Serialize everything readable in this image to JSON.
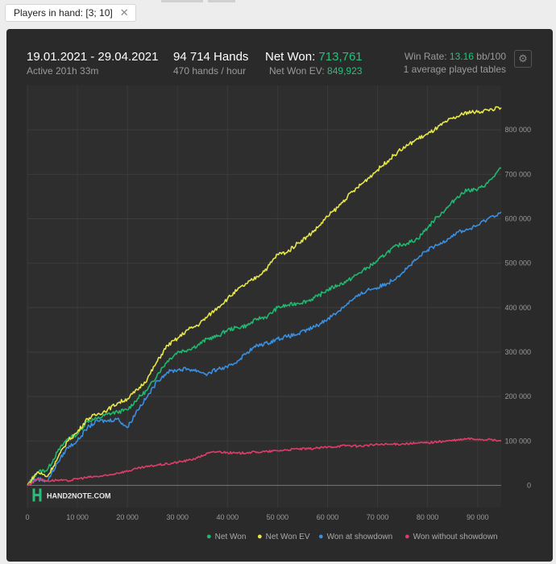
{
  "filter": {
    "label": "Players in hand: [3; 10]",
    "close": "✕"
  },
  "header": {
    "date_range": "19.01.2021 - 29.04.2021",
    "active": "Active 201h 33m",
    "hands": "94 714 Hands",
    "hands_rate": "470 hands / hour",
    "net_won_label": "Net Won:",
    "net_won_value": "713,761",
    "ev_label": "Net Won  EV:",
    "ev_value": "849,923",
    "win_rate_label": "Win Rate:",
    "win_rate_value": "13.16",
    "win_rate_unit": "bb/100",
    "tables": "1 average played tables"
  },
  "watermark": "HAND2NOTE.COM",
  "chart_data": {
    "type": "line",
    "xlabel": "",
    "ylabel": "",
    "xlim": [
      0,
      94714
    ],
    "ylim": [
      -50000,
      900000
    ],
    "x_ticks": [
      0,
      10000,
      20000,
      30000,
      40000,
      50000,
      60000,
      70000,
      80000,
      90000
    ],
    "x_tick_labels": [
      "0",
      "10 000",
      "20 000",
      "30 000",
      "40 000",
      "50 000",
      "60 000",
      "70 000",
      "80 000",
      "90 000"
    ],
    "y_ticks": [
      0,
      100000,
      200000,
      300000,
      400000,
      500000,
      600000,
      700000,
      800000
    ],
    "y_tick_labels": [
      "0",
      "100 000",
      "200 000",
      "300 000",
      "400 000",
      "500 000",
      "600 000",
      "700 000",
      "800 000"
    ],
    "grid": true,
    "legend_position": "bottom-right",
    "x": [
      0,
      2000,
      4000,
      6000,
      8000,
      10000,
      12000,
      14000,
      16000,
      18000,
      20000,
      22000,
      24000,
      26000,
      28000,
      30000,
      32000,
      34000,
      36000,
      38000,
      40000,
      42000,
      44000,
      46000,
      48000,
      50000,
      52000,
      54000,
      56000,
      58000,
      60000,
      62000,
      64000,
      66000,
      68000,
      70000,
      72000,
      74000,
      76000,
      78000,
      80000,
      82000,
      84000,
      86000,
      88000,
      90000,
      92000,
      94714
    ],
    "series": [
      {
        "name": "Net Won",
        "color": "#20b86e",
        "values": [
          0,
          30000,
          35000,
          75000,
          105000,
          115000,
          145000,
          150000,
          160000,
          165000,
          170000,
          195000,
          215000,
          250000,
          280000,
          300000,
          305000,
          315000,
          330000,
          335000,
          350000,
          355000,
          360000,
          375000,
          380000,
          400000,
          405000,
          410000,
          415000,
          425000,
          440000,
          450000,
          460000,
          475000,
          490000,
          505000,
          525000,
          540000,
          545000,
          555000,
          580000,
          605000,
          625000,
          650000,
          665000,
          665000,
          680000,
          713761
        ]
      },
      {
        "name": "Net Won  EV",
        "color": "#e6e64a",
        "values": [
          0,
          30000,
          20000,
          60000,
          100000,
          120000,
          150000,
          160000,
          170000,
          185000,
          195000,
          215000,
          240000,
          280000,
          315000,
          330000,
          350000,
          360000,
          380000,
          400000,
          420000,
          440000,
          455000,
          470000,
          490000,
          520000,
          525000,
          545000,
          560000,
          580000,
          605000,
          625000,
          650000,
          670000,
          690000,
          710000,
          730000,
          750000,
          765000,
          780000,
          790000,
          805000,
          820000,
          830000,
          840000,
          840000,
          845000,
          849923
        ]
      },
      {
        "name": "Won at showdown",
        "color": "#3a8fe0",
        "values": [
          0,
          15000,
          10000,
          50000,
          85000,
          100000,
          130000,
          145000,
          145000,
          150000,
          130000,
          170000,
          200000,
          235000,
          255000,
          260000,
          262000,
          258000,
          250000,
          262000,
          265000,
          280000,
          300000,
          315000,
          320000,
          330000,
          335000,
          340000,
          350000,
          360000,
          375000,
          390000,
          410000,
          425000,
          440000,
          445000,
          455000,
          470000,
          490000,
          510000,
          530000,
          540000,
          555000,
          570000,
          575000,
          585000,
          600000,
          615000
        ]
      },
      {
        "name": "Won without showdown",
        "color": "#e03c6a",
        "values": [
          0,
          15000,
          10000,
          12000,
          10000,
          15000,
          18000,
          20000,
          22000,
          28000,
          32000,
          38000,
          42000,
          46000,
          48000,
          52000,
          56000,
          62000,
          72000,
          76000,
          74000,
          72000,
          74000,
          75000,
          76000,
          78000,
          80000,
          82000,
          82000,
          84000,
          86000,
          88000,
          90000,
          88000,
          90000,
          92000,
          92000,
          93000,
          94000,
          95000,
          96000,
          98000,
          100000,
          102000,
          105000,
          104000,
          103000,
          100000
        ]
      }
    ]
  }
}
